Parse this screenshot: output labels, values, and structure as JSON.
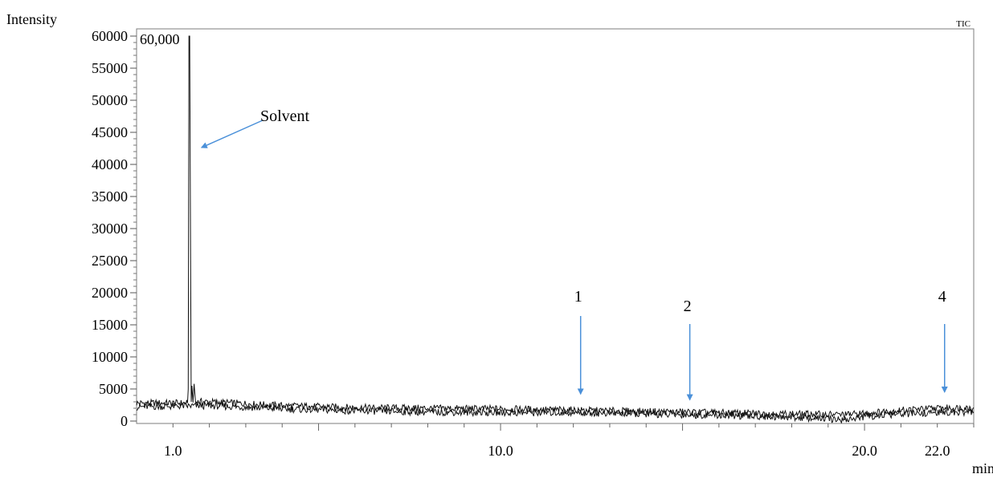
{
  "chart_data": {
    "type": "line",
    "title": "",
    "corner_label": "TIC",
    "ylabel": "Intensity",
    "xlabel": "min",
    "xlim": [
      0.0,
      23.0
    ],
    "ylim": [
      0,
      60000
    ],
    "y_ticks": [
      0,
      5000,
      10000,
      15000,
      20000,
      25000,
      30000,
      35000,
      40000,
      45000,
      50000,
      55000,
      60000
    ],
    "y_tick_labels": [
      "0",
      "5000",
      "10000",
      "15000",
      "20000",
      "25000",
      "30000",
      "35000",
      "40000",
      "45000",
      "50000",
      "55000",
      "60000"
    ],
    "x_ticks": [
      1.0,
      10.0,
      20.0,
      22.0
    ],
    "x_tick_labels": [
      "1.0",
      "10.0",
      "20.0",
      "22.0"
    ],
    "peak_label": "60,000",
    "grid": false,
    "series": [
      {
        "x": [
          0.0,
          1.4,
          1.42,
          1.44,
          1.46,
          1.5,
          1.52,
          1.55,
          1.58,
          1.62,
          2.0,
          4.0,
          6.0,
          8.0,
          10.0,
          12.0,
          14.0,
          16.0,
          18.0,
          19.5,
          20.0,
          21.0,
          22.0,
          23.0
        ],
        "y": [
          2800,
          2800,
          5000,
          60000,
          60000,
          3000,
          5500,
          2900,
          5800,
          3000,
          3000,
          2400,
          2100,
          2000,
          1900,
          1700,
          1500,
          1300,
          1100,
          1000,
          1200,
          1700,
          2000,
          2100
        ]
      },
      {
        "x": [
          0.0,
          2.0,
          4.0,
          6.0,
          8.0,
          10.0,
          12.0,
          14.0,
          16.0,
          18.0,
          19.5,
          20.0,
          21.0,
          22.0,
          23.0
        ],
        "y": [
          2200,
          2400,
          1900,
          1600,
          1400,
          1300,
          1300,
          1100,
          900,
          600,
          200,
          700,
          1100,
          1300,
          1400
        ]
      }
    ],
    "annotations": [
      {
        "label": "Solvent",
        "x": 1.65,
        "y": 43000
      },
      {
        "label": "1",
        "x": 12.2,
        "y": 4200
      },
      {
        "label": "2",
        "x": 15.2,
        "y": 3300
      },
      {
        "label": "4",
        "x": 22.2,
        "y": 4500
      }
    ],
    "arrow_color": "#4a90d9",
    "line_color": "#111111"
  }
}
